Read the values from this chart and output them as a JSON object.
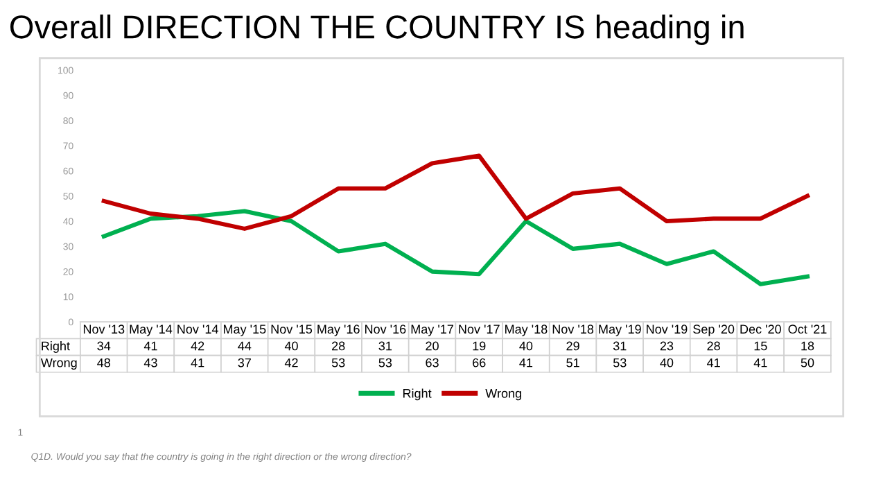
{
  "chart_data": {
    "type": "line",
    "title": "Overall DIRECTION THE COUNTRY IS heading in",
    "categories": [
      "Nov '13",
      "May '14",
      "Nov '14",
      "May '15",
      "Nov '15",
      "May '16",
      "Nov '16",
      "May '17",
      "Nov '17",
      "May '18",
      "Nov '18",
      "May '19",
      "Nov '19",
      "Sep '20",
      "Dec '20",
      "Oct '21"
    ],
    "series": [
      {
        "name": "Right",
        "color": "#00b050",
        "values": [
          34,
          41,
          42,
          44,
          40,
          28,
          31,
          20,
          19,
          40,
          29,
          31,
          23,
          28,
          15,
          18
        ]
      },
      {
        "name": "Wrong",
        "color": "#c00000",
        "values": [
          48,
          43,
          41,
          37,
          42,
          53,
          53,
          63,
          66,
          41,
          51,
          53,
          40,
          41,
          41,
          50
        ]
      }
    ],
    "ylim": [
      0,
      100
    ],
    "yticks": [
      0,
      10,
      20,
      30,
      40,
      50,
      60,
      70,
      80,
      90,
      100
    ],
    "grid": false,
    "legend": "bottom",
    "data_labels": true,
    "marker": "none",
    "line_style": "solid",
    "annotations": [
      "1",
      "Q1D. Would you say that the country is going in the right direction or the wrong direction?"
    ]
  }
}
